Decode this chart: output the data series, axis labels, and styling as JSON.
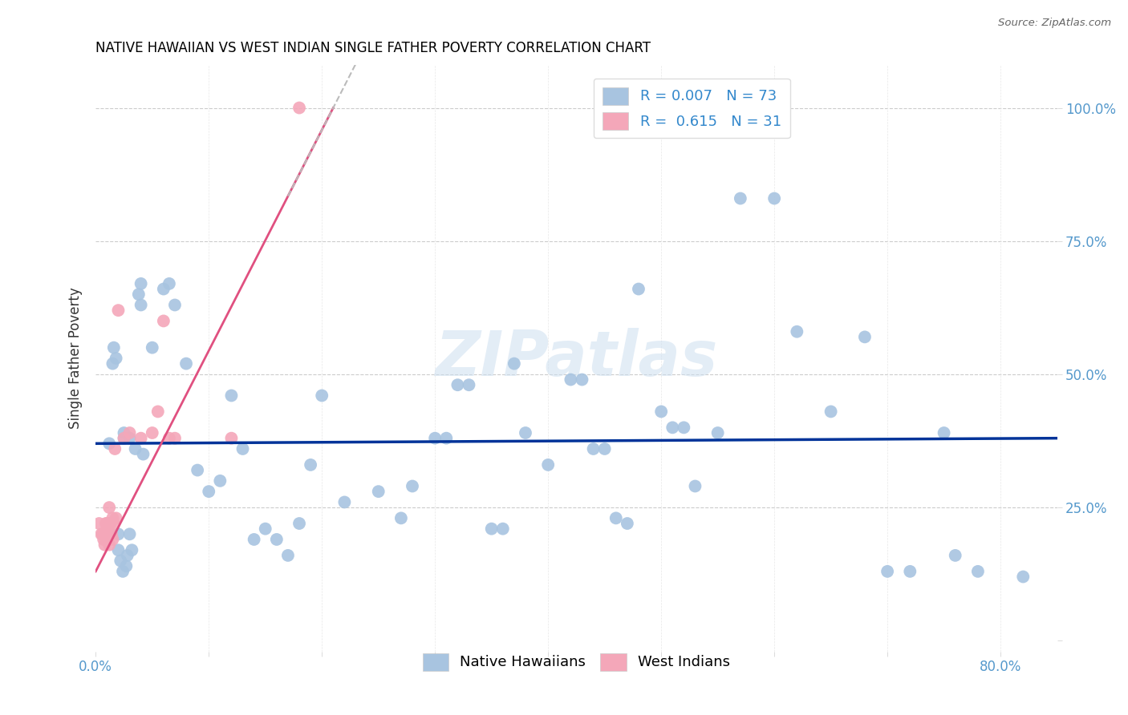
{
  "title": "NATIVE HAWAIIAN VS WEST INDIAN SINGLE FATHER POVERTY CORRELATION CHART",
  "source": "Source: ZipAtlas.com",
  "ylabel": "Single Father Poverty",
  "xlim": [
    0.0,
    0.85
  ],
  "ylim": [
    -0.02,
    1.08
  ],
  "legend_blue_label": "R = 0.007   N = 73",
  "legend_pink_label": "R =  0.615   N = 31",
  "legend_blue_series": "Native Hawaiians",
  "legend_pink_series": "West Indians",
  "blue_color": "#a8c4e0",
  "pink_color": "#f4a7b9",
  "trendline_blue_color": "#003399",
  "trendline_pink_color": "#e05080",
  "watermark": "ZIPatlas",
  "blue_R": 0.007,
  "pink_R": 0.615,
  "blue_trend_y0": 0.37,
  "blue_trend_y1": 0.38,
  "pink_trend_x0": 0.0,
  "pink_trend_y0": 0.13,
  "pink_trend_x1": 0.21,
  "pink_trend_y1": 1.0,
  "blue_points_x": [
    0.012,
    0.015,
    0.016,
    0.018,
    0.02,
    0.02,
    0.022,
    0.024,
    0.025,
    0.025,
    0.027,
    0.028,
    0.03,
    0.03,
    0.032,
    0.035,
    0.038,
    0.04,
    0.04,
    0.042,
    0.05,
    0.06,
    0.065,
    0.07,
    0.08,
    0.09,
    0.1,
    0.11,
    0.12,
    0.13,
    0.14,
    0.15,
    0.16,
    0.17,
    0.18,
    0.19,
    0.2,
    0.22,
    0.25,
    0.27,
    0.28,
    0.3,
    0.31,
    0.32,
    0.33,
    0.35,
    0.36,
    0.37,
    0.38,
    0.4,
    0.42,
    0.43,
    0.44,
    0.45,
    0.46,
    0.47,
    0.48,
    0.5,
    0.51,
    0.52,
    0.53,
    0.55,
    0.57,
    0.6,
    0.62,
    0.65,
    0.68,
    0.7,
    0.72,
    0.75,
    0.76,
    0.78,
    0.82
  ],
  "blue_points_y": [
    0.37,
    0.52,
    0.55,
    0.53,
    0.2,
    0.17,
    0.15,
    0.13,
    0.38,
    0.39,
    0.14,
    0.16,
    0.38,
    0.2,
    0.17,
    0.36,
    0.65,
    0.67,
    0.63,
    0.35,
    0.55,
    0.66,
    0.67,
    0.63,
    0.52,
    0.32,
    0.28,
    0.3,
    0.46,
    0.36,
    0.19,
    0.21,
    0.19,
    0.16,
    0.22,
    0.33,
    0.46,
    0.26,
    0.28,
    0.23,
    0.29,
    0.38,
    0.38,
    0.48,
    0.48,
    0.21,
    0.21,
    0.52,
    0.39,
    0.33,
    0.49,
    0.49,
    0.36,
    0.36,
    0.23,
    0.22,
    0.66,
    0.43,
    0.4,
    0.4,
    0.29,
    0.39,
    0.83,
    0.83,
    0.58,
    0.43,
    0.57,
    0.13,
    0.13,
    0.39,
    0.16,
    0.13,
    0.12
  ],
  "pink_points_x": [
    0.003,
    0.005,
    0.006,
    0.007,
    0.008,
    0.009,
    0.009,
    0.01,
    0.01,
    0.011,
    0.012,
    0.012,
    0.013,
    0.013,
    0.014,
    0.015,
    0.015,
    0.016,
    0.017,
    0.018,
    0.02,
    0.025,
    0.03,
    0.04,
    0.05,
    0.055,
    0.06,
    0.065,
    0.07,
    0.12,
    0.18
  ],
  "pink_points_y": [
    0.22,
    0.2,
    0.2,
    0.19,
    0.18,
    0.22,
    0.2,
    0.2,
    0.22,
    0.22,
    0.25,
    0.18,
    0.22,
    0.2,
    0.2,
    0.23,
    0.19,
    0.22,
    0.36,
    0.23,
    0.62,
    0.38,
    0.39,
    0.38,
    0.39,
    0.43,
    0.6,
    0.38,
    0.38,
    0.38,
    1.0
  ]
}
